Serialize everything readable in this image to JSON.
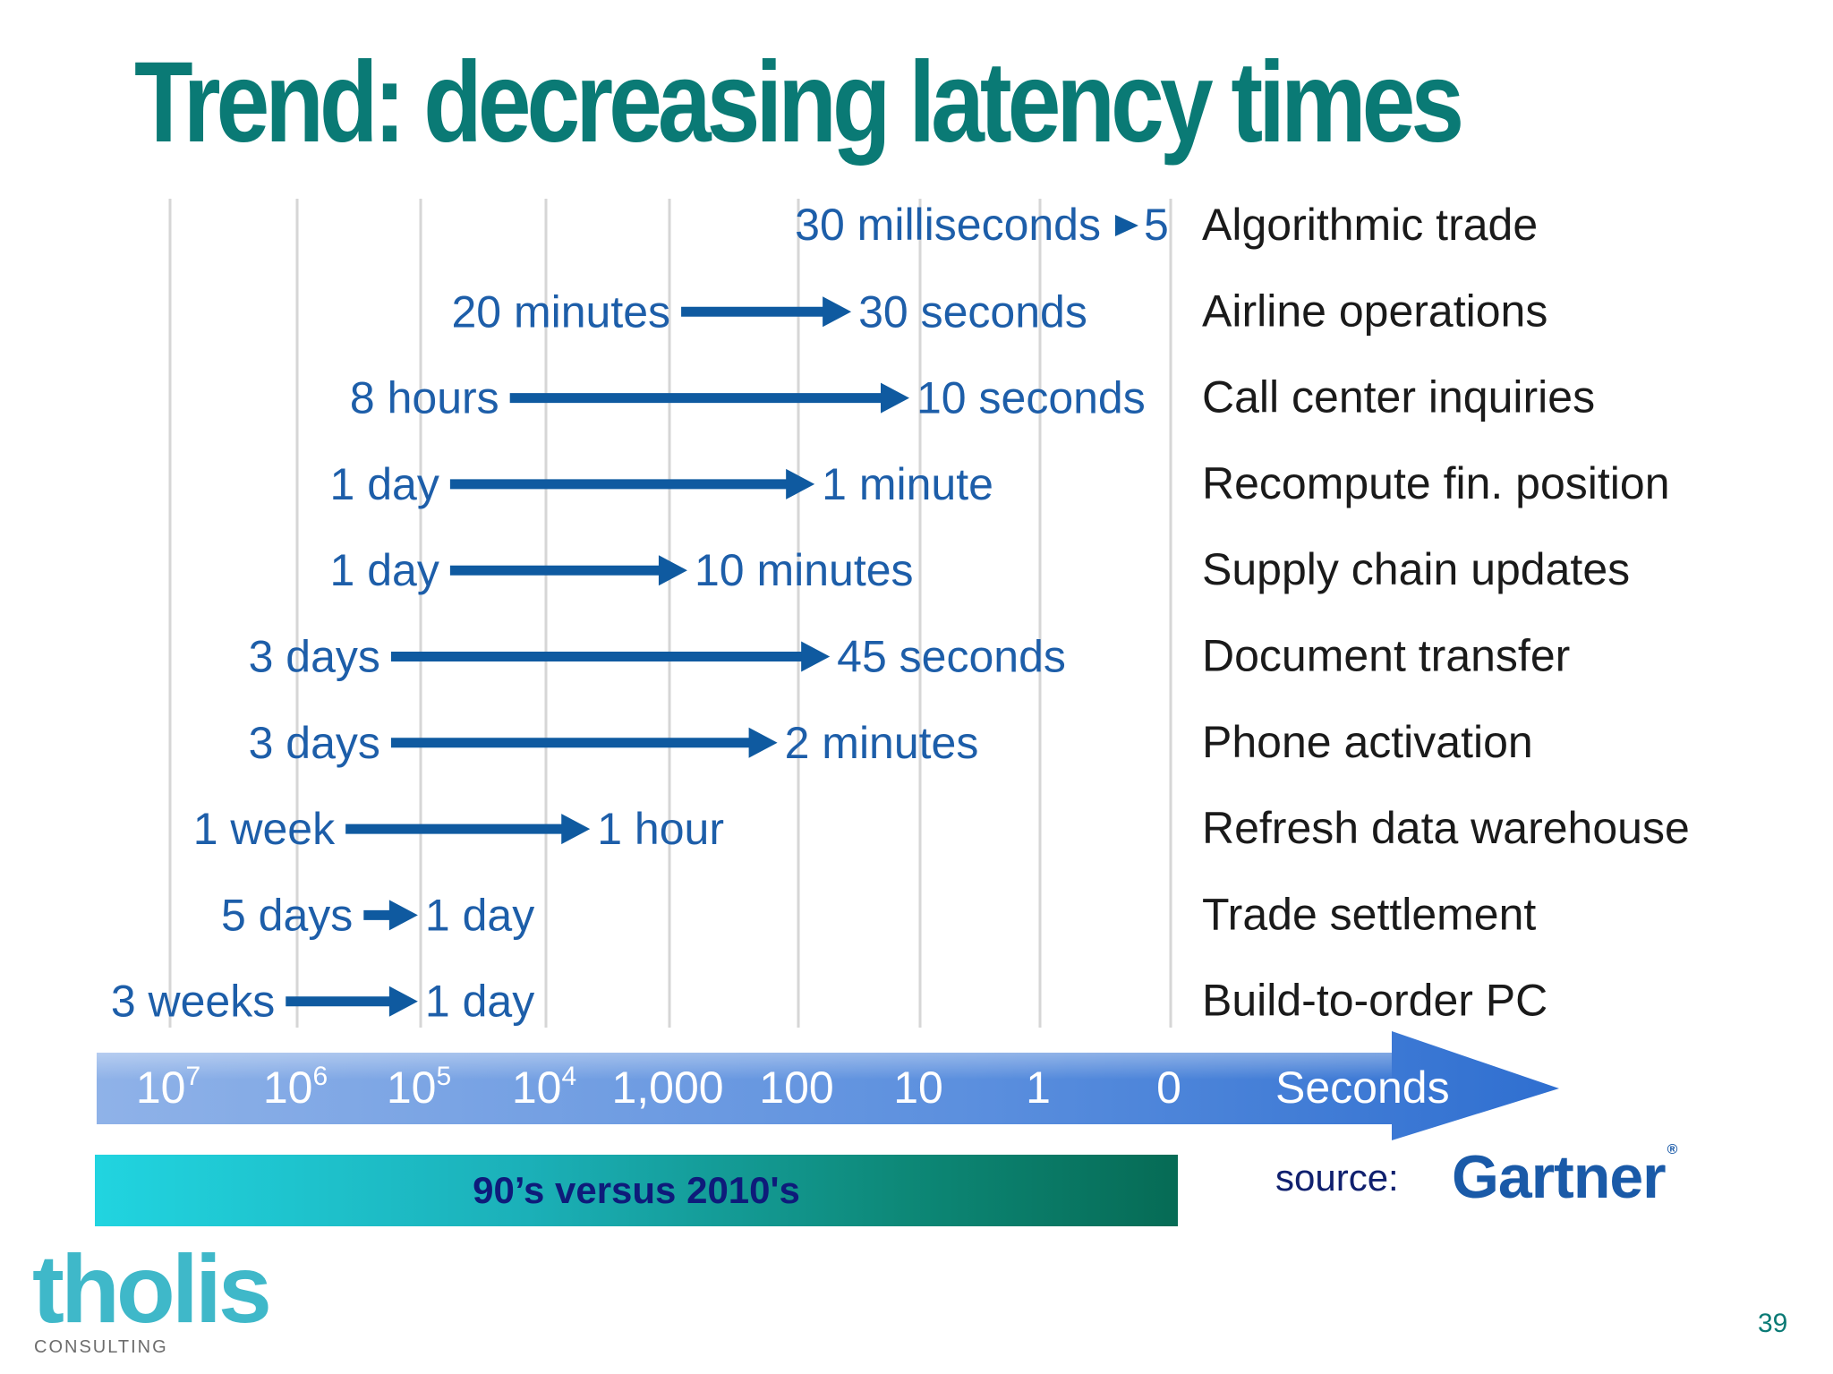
{
  "slide": {
    "title": "Trend: decreasing latency times",
    "era_label": "90’s versus 2010's",
    "source_label": "source:",
    "source_logo": "Gartner",
    "company_logo": "tholis",
    "company_sub": "CONSULTING",
    "page_number": "39"
  },
  "colors": {
    "title": "#0a7a75",
    "arrow": "#0f5aa0",
    "time_label": "#1d5ea9",
    "activity_label": "#1a1a1a",
    "axis_arrow": "#4a82d6",
    "era_bar_start": "#21d4e0",
    "era_bar_end": "#066b55"
  },
  "chart_data": {
    "type": "range-arrow",
    "x_axis": {
      "scale": "log",
      "unit_label": "Seconds",
      "ticks": [
        {
          "value": 10000000,
          "base": "10",
          "exp": "7"
        },
        {
          "value": 1000000,
          "base": "10",
          "exp": "6"
        },
        {
          "value": 100000,
          "base": "10",
          "exp": "5"
        },
        {
          "value": 10000,
          "base": "10",
          "exp": "4"
        },
        {
          "value": 1000,
          "base": "1,000",
          "exp": ""
        },
        {
          "value": 100,
          "base": "100",
          "exp": ""
        },
        {
          "value": 10,
          "base": "10",
          "exp": ""
        },
        {
          "value": 1,
          "base": "1",
          "exp": ""
        },
        {
          "value": 0,
          "base": "0",
          "exp": ""
        }
      ],
      "direction": "decreasing left to right",
      "grid": true
    },
    "rows": [
      {
        "activity": "Algorithmic trade",
        "from_label": "30 milliseconds",
        "to_label": "5",
        "from_seconds": 0.03,
        "to_seconds": 0.005
      },
      {
        "activity": "Airline operations",
        "from_label": "20 minutes",
        "to_label": "30 seconds",
        "from_seconds": 1200,
        "to_seconds": 30
      },
      {
        "activity": "Call center inquiries",
        "from_label": "8 hours",
        "to_label": "10 seconds",
        "from_seconds": 28800,
        "to_seconds": 10
      },
      {
        "activity": "Recompute fin. position",
        "from_label": "1 day",
        "to_label": "1 minute",
        "from_seconds": 86400,
        "to_seconds": 60
      },
      {
        "activity": "Supply chain updates",
        "from_label": "1 day",
        "to_label": "10 minutes",
        "from_seconds": 86400,
        "to_seconds": 600
      },
      {
        "activity": "Document transfer",
        "from_label": "3 days",
        "to_label": "45 seconds",
        "from_seconds": 259200,
        "to_seconds": 45
      },
      {
        "activity": "Phone activation",
        "from_label": "3 days",
        "to_label": "2 minutes",
        "from_seconds": 259200,
        "to_seconds": 120
      },
      {
        "activity": "Refresh data warehouse",
        "from_label": "1 week",
        "to_label": "1 hour",
        "from_seconds": 604800,
        "to_seconds": 3600
      },
      {
        "activity": "Trade settlement",
        "from_label": "5 days",
        "to_label": "1 day",
        "from_seconds": 432000,
        "to_seconds": 86400
      },
      {
        "activity": "Build-to-order PC",
        "from_label": "3 weeks",
        "to_label": "1 day",
        "from_seconds": 1814400,
        "to_seconds": 86400
      }
    ]
  }
}
